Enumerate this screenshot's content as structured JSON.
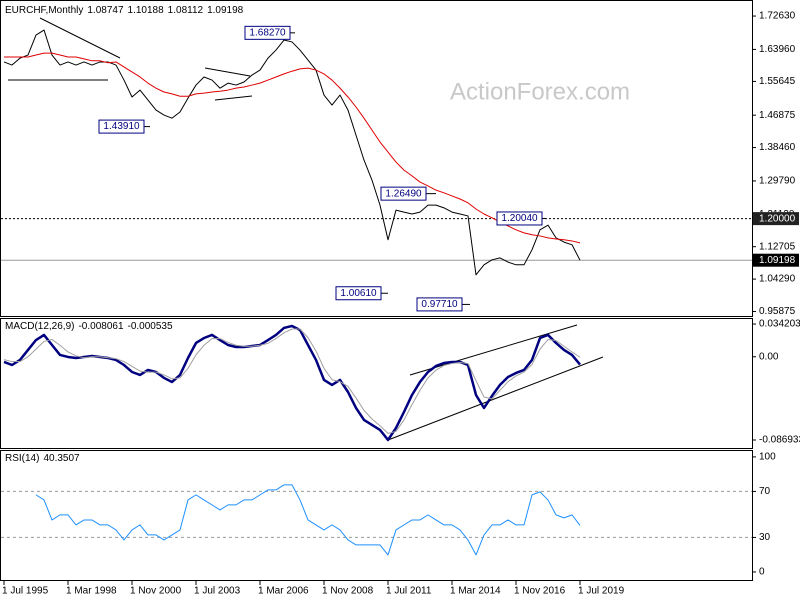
{
  "chart_data": [
    {
      "type": "line",
      "title": "EURCHF,Monthly",
      "ohlc": [
        1.08747,
        1.10188,
        1.08112,
        1.09198
      ],
      "categories": [
        "1 Jul 1995",
        null,
        null,
        null,
        null,
        null,
        null,
        null,
        "1 Mar 1998",
        null,
        null,
        null,
        null,
        null,
        null,
        null,
        "1 Nov 2000",
        null,
        null,
        null,
        null,
        null,
        null,
        null,
        "1 Jul 2003",
        null,
        null,
        null,
        null,
        null,
        null,
        null,
        "1 Mar 2006",
        null,
        null,
        null,
        null,
        null,
        null,
        null,
        "1 Nov 2008",
        null,
        null,
        null,
        null,
        null,
        null,
        null,
        "1 Jul 2011",
        null,
        null,
        null,
        null,
        null,
        null,
        null,
        "1 Mar 2014",
        null,
        null,
        null,
        null,
        null,
        null,
        null,
        "1 Nov 2016",
        null,
        null,
        null,
        null,
        null,
        null,
        null,
        "1 Jul 2019"
      ],
      "series": [
        {
          "color": "#000000",
          "width": 1,
          "values": [
            1.607,
            1.599,
            1.617,
            1.625,
            1.677,
            1.69,
            1.625,
            1.599,
            1.607,
            1.599,
            1.607,
            1.599,
            1.607,
            1.607,
            1.599,
            1.56,
            1.516,
            1.534,
            1.508,
            1.482,
            1.469,
            1.461,
            1.477,
            1.513,
            1.547,
            1.568,
            1.56,
            1.539,
            1.552,
            1.547,
            1.555,
            1.573,
            1.586,
            1.617,
            1.638,
            1.664,
            1.659,
            1.638,
            1.612,
            1.586,
            1.521,
            1.495,
            1.521,
            1.482,
            1.417,
            1.352,
            1.3,
            1.235,
            1.145,
            1.222,
            1.217,
            1.212,
            1.217,
            1.235,
            1.235,
            1.228,
            1.217,
            1.212,
            1.207,
            1.054,
            1.08,
            1.093,
            1.098,
            1.087,
            1.08,
            1.08,
            1.119,
            1.171,
            1.183,
            1.15,
            1.139,
            1.132,
            1.092
          ]
        },
        {
          "color": "#e00000",
          "width": 1,
          "values": [
            1.62,
            1.62,
            1.62,
            1.62,
            1.625,
            1.63,
            1.63,
            1.625,
            1.62,
            1.62,
            1.615,
            1.61,
            1.61,
            1.605,
            1.607,
            1.594,
            1.581,
            1.568,
            1.552,
            1.539,
            1.529,
            1.524,
            1.518,
            1.518,
            1.524,
            1.526,
            1.529,
            1.531,
            1.534,
            1.539,
            1.542,
            1.547,
            1.552,
            1.56,
            1.568,
            1.576,
            1.583,
            1.589,
            1.591,
            1.586,
            1.576,
            1.56,
            1.539,
            1.516,
            1.49,
            1.461,
            1.43,
            1.399,
            1.373,
            1.347,
            1.326,
            1.311,
            1.295,
            1.285,
            1.274,
            1.267,
            1.259,
            1.251,
            1.241,
            1.225,
            1.212,
            1.202,
            1.191,
            1.181,
            1.171,
            1.163,
            1.158,
            1.155,
            1.15,
            1.147,
            1.145,
            1.142,
            1.137
          ]
        }
      ],
      "ylim": [
        0.947,
        1.768
      ],
      "yticks": [
        {
          "value": 1.7263,
          "label": "1.72630"
        },
        {
          "value": 1.6396,
          "label": "1.63960"
        },
        1.55645,
        1.46875,
        {
          "value": 1.3846,
          "label": "1.38460"
        },
        {
          "value": 1.2979,
          "label": "1.29790"
        },
        {
          "value": 1.2112,
          "label": "1.21120"
        },
        1.12705,
        {
          "value": 1.0429,
          "label": "1.04290"
        },
        0.95875
      ],
      "annotations": [
        {
          "value": 1.6827,
          "label": "1.68270"
        },
        {
          "value": 1.4391,
          "label": "1.43910"
        },
        {
          "value": 1.2649,
          "label": "1.26490"
        },
        {
          "value": 1.0061,
          "label": "1.00610"
        },
        {
          "value": 0.9771,
          "label": "0.97710"
        },
        {
          "value": 1.2004,
          "label": "1.20040"
        }
      ],
      "price_lines": [
        {
          "value": 1.2,
          "label": "1.20000",
          "style": "dashed"
        },
        {
          "value": 1.09198,
          "label": "1.09198",
          "style": "solid"
        }
      ],
      "watermark": "ActionForex.com"
    },
    {
      "type": "line",
      "title": "MACD(12,26,9)",
      "readout": [
        -0.008061,
        -0.000535
      ],
      "series": [
        {
          "color": "#000080",
          "width": 2.5,
          "values": [
            -0.0054,
            -0.0086,
            -0.0033,
            0.0071,
            0.0175,
            0.0228,
            0.0123,
            0.0019,
            -0.0002,
            -0.0013,
            -0.0002,
            0.0008,
            -0.0002,
            -0.0013,
            -0.0033,
            -0.0086,
            -0.0159,
            -0.019,
            -0.0138,
            -0.0159,
            -0.0221,
            -0.0263,
            -0.019,
            -0.0013,
            0.0144,
            0.0196,
            0.0228,
            0.0175,
            0.0123,
            0.0102,
            0.0102,
            0.0113,
            0.0123,
            0.0175,
            0.0228,
            0.0301,
            0.0322,
            0.028,
            0.0123,
            -0.0033,
            -0.0242,
            -0.0294,
            -0.0242,
            -0.0368,
            -0.0535,
            -0.066,
            -0.0712,
            -0.0764,
            -0.0869,
            -0.0744,
            -0.0576,
            -0.0399,
            -0.0263,
            -0.0159,
            -0.0096,
            -0.0065,
            -0.0054,
            -0.0054,
            -0.0086,
            -0.0399,
            -0.0535,
            -0.0409,
            -0.0294,
            -0.0211,
            -0.0169,
            -0.0138,
            -0.0033,
            0.0196,
            0.0228,
            0.0144,
            0.0071,
            0.0019,
            -0.0081
          ]
        },
        {
          "color": "#a0a0a0",
          "width": 1,
          "values": [
            -0.003,
            -0.005,
            -0.005,
            0,
            0.008,
            0.016,
            0.018,
            0.012,
            0.005,
            0.001,
            -0.001,
            0,
            0,
            -0.001,
            -0.002,
            -0.005,
            -0.01,
            -0.015,
            -0.016,
            -0.016,
            -0.019,
            -0.023,
            -0.022,
            -0.012,
            0.002,
            0.012,
            0.019,
            0.019,
            0.015,
            0.012,
            0.011,
            0.011,
            0.012,
            0.014,
            0.019,
            0.025,
            0.029,
            0.029,
            0.02,
            0.006,
            -0.012,
            -0.024,
            -0.026,
            -0.031,
            -0.043,
            -0.056,
            -0.065,
            -0.072,
            -0.08,
            -0.078,
            -0.066,
            -0.05,
            -0.035,
            -0.022,
            -0.014,
            -0.009,
            -0.007,
            -0.006,
            -0.007,
            -0.025,
            -0.042,
            -0.044,
            -0.035,
            -0.026,
            -0.02,
            -0.016,
            -0.008,
            0.008,
            0.018,
            0.017,
            0.011,
            0.005,
            -0.0005
          ]
        }
      ],
      "ylim": [
        -0.0953,
        0.0405
      ],
      "yticks": [
        0.034203,
        {
          "value": 0,
          "label": "0.00"
        },
        -0.086933
      ]
    },
    {
      "type": "line",
      "title": "RSI(14)",
      "readout": 40.3507,
      "series": [
        {
          "color": "#1e90ff",
          "width": 1,
          "values": [
            null,
            null,
            null,
            null,
            67.0,
            62.6,
            45.2,
            49.6,
            49.6,
            40.9,
            45.2,
            45.2,
            40.9,
            40.9,
            36.5,
            27.8,
            36.5,
            40.9,
            32.2,
            32.2,
            27.8,
            32.2,
            36.5,
            62.6,
            67.0,
            62.6,
            58.3,
            53.9,
            58.3,
            58.3,
            62.6,
            62.6,
            67.0,
            71.3,
            71.3,
            75.7,
            75.7,
            62.6,
            45.2,
            40.9,
            36.5,
            40.9,
            36.5,
            27.8,
            23.5,
            23.5,
            23.5,
            23.5,
            14.8,
            36.5,
            40.9,
            45.2,
            45.2,
            49.6,
            45.2,
            40.9,
            40.9,
            36.5,
            27.8,
            14.8,
            32.2,
            40.9,
            40.9,
            45.2,
            40.9,
            40.9,
            67.0,
            69.6,
            62.6,
            49.6,
            47.0,
            49.6,
            40.4
          ]
        }
      ],
      "ylim": [
        -7,
        106
      ],
      "yticks": [
        0,
        30,
        70,
        100
      ],
      "levels": [
        30,
        70
      ]
    }
  ]
}
